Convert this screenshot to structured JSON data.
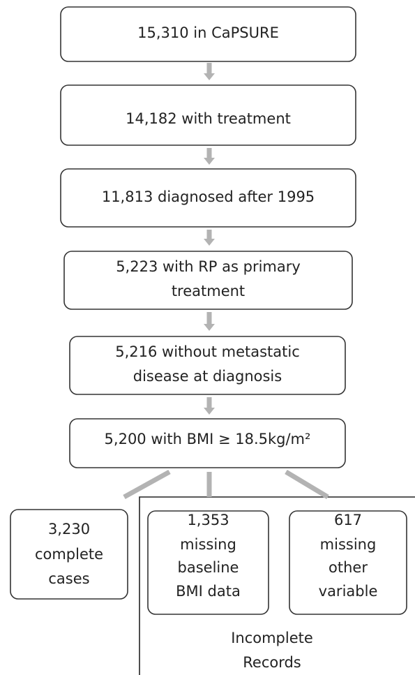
{
  "nodes": [
    {
      "lines": [
        "15,310 in CaPSURE"
      ]
    },
    {
      "lines": [
        "14,182 with treatment"
      ]
    },
    {
      "lines": [
        "11,813 diagnosed after 1995"
      ]
    },
    {
      "lines": [
        "5,223 with RP as primary",
        "treatment"
      ]
    },
    {
      "lines": [
        "5,216 without  metastatic",
        "disease at diagnosis"
      ]
    },
    {
      "lines": [
        "5,200 with BMI ≥ 18.5kg/m²"
      ]
    },
    {
      "lines": [
        "3,230",
        "complete",
        "cases"
      ]
    },
    {
      "lines": [
        "1,353",
        "missing",
        "baseline",
        "BMI data"
      ]
    },
    {
      "lines": [
        "617",
        "missing",
        "other",
        "variable"
      ]
    }
  ],
  "group": {
    "lines": [
      "Incomplete",
      "Records"
    ]
  }
}
